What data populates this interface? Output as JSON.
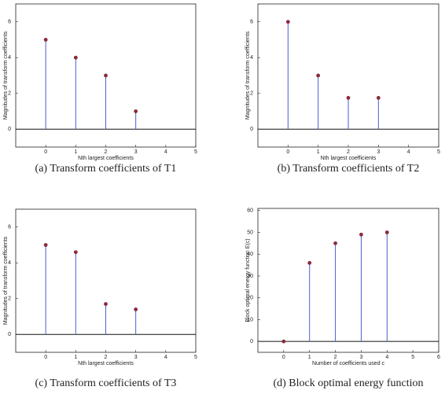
{
  "chart_data": [
    {
      "type": "stem",
      "caption": "(a) Transform coefficients of T1",
      "xlabel": "Nth largest coefficients",
      "ylabel": "Magnitudes of transform coefficients",
      "x": [
        0,
        1,
        2,
        3
      ],
      "values": [
        5,
        4,
        3,
        1
      ],
      "xlim": [
        -1,
        5
      ],
      "ylim": [
        -1,
        7
      ],
      "xticks": [
        0,
        1,
        2,
        3,
        4,
        5
      ],
      "yticks": [
        0,
        2,
        4,
        6
      ],
      "color": "#4a5fd0",
      "marker_color": "#8b2a3a"
    },
    {
      "type": "stem",
      "caption": "(b) Transform coefficients of T2",
      "xlabel": "Nth largest coefficients",
      "ylabel": "Magnitudes of transform coefficients",
      "x": [
        0,
        1,
        2,
        3
      ],
      "values": [
        6,
        3,
        1.75,
        1.75
      ],
      "xlim": [
        -1,
        5
      ],
      "ylim": [
        -1,
        7
      ],
      "xticks": [
        0,
        1,
        2,
        3,
        4,
        5
      ],
      "yticks": [
        0,
        2,
        4,
        6
      ],
      "color": "#4a5fd0",
      "marker_color": "#8b2a3a"
    },
    {
      "type": "stem",
      "caption": "(c) Transform coefficients of T3",
      "xlabel": "Nth largest coefficients",
      "ylabel": "Magnitudes of transform coefficients",
      "x": [
        0,
        1,
        2,
        3
      ],
      "values": [
        5,
        4.6,
        1.7,
        1.4
      ],
      "xlim": [
        -1,
        5
      ],
      "ylim": [
        -1,
        7
      ],
      "xticks": [
        0,
        1,
        2,
        3,
        4,
        5
      ],
      "yticks": [
        0,
        2,
        4,
        6
      ],
      "color": "#4a5fd0",
      "marker_color": "#8b2a3a"
    },
    {
      "type": "stem",
      "caption": "(d) Block optimal energy function",
      "xlabel": "Number of coefficients used c",
      "ylabel": "Block optimal energy function E(c)",
      "x": [
        0,
        1,
        2,
        3,
        4
      ],
      "values": [
        0,
        36,
        45,
        49,
        50
      ],
      "xlim": [
        -1,
        6
      ],
      "ylim": [
        -5,
        61
      ],
      "xticks": [
        0,
        1,
        2,
        3,
        4,
        5,
        6
      ],
      "yticks": [
        0,
        10,
        20,
        30,
        40,
        50,
        60
      ],
      "color": "#4a5fd0",
      "marker_color": "#8b2a3a"
    }
  ]
}
